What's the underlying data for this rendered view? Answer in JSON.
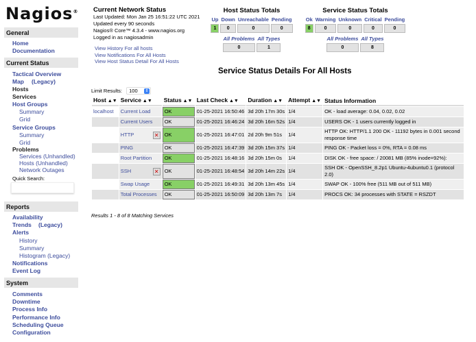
{
  "logo": "Nagios",
  "sidebar": {
    "general": "General",
    "home": "Home",
    "documentation": "Documentation",
    "current_status": "Current Status",
    "tactical": "Tactical Overview",
    "map": "Map",
    "map_legacy": "(Legacy)",
    "hosts": "Hosts",
    "services": "Services",
    "host_groups": "Host Groups",
    "hg_summary": "Summary",
    "hg_grid": "Grid",
    "service_groups": "Service Groups",
    "sg_summary": "Summary",
    "sg_grid": "Grid",
    "problems": "Problems",
    "p_services": "Services (Unhandled)",
    "p_hosts": "Hosts (Unhandled)",
    "p_outages": "Network Outages",
    "quick_search": "Quick Search:",
    "reports": "Reports",
    "availability": "Availability",
    "trends": "Trends",
    "trends_legacy": "(Legacy)",
    "alerts": "Alerts",
    "history": "History",
    "summary": "Summary",
    "histogram": "Histogram (Legacy)",
    "notifications": "Notifications",
    "event_log": "Event Log",
    "system": "System",
    "comments": "Comments",
    "downtime": "Downtime",
    "process_info": "Process Info",
    "performance_info": "Performance Info",
    "scheduling_queue": "Scheduling Queue",
    "configuration": "Configuration"
  },
  "info": {
    "title": "Current Network Status",
    "updated": "Last Updated: Mon Jan 25 16:51:22 UTC 2021",
    "every": "Updated every 90 seconds",
    "core": "Nagios® Core™ 4.3.4 - www.nagios.org",
    "logged": "Logged in as nagiosadmin"
  },
  "links": [
    "View History For all hosts",
    "View Notifications For All Hosts",
    "View Host Status Detail For All Hosts"
  ],
  "host_totals": {
    "title": "Host Status Totals",
    "labels": [
      "Up",
      "Down",
      "Unreachable",
      "Pending"
    ],
    "values": [
      "1",
      "0",
      "0",
      "0"
    ],
    "all_problems": "All Problems",
    "all_types": "All Types",
    "problems_value": "0",
    "types_value": "1"
  },
  "service_totals": {
    "title": "Service Status Totals",
    "labels": [
      "Ok",
      "Warning",
      "Unknown",
      "Critical",
      "Pending"
    ],
    "values": [
      "8",
      "0",
      "0",
      "0",
      "0"
    ],
    "all_problems": "All Problems",
    "all_types": "All Types",
    "problems_value": "0",
    "types_value": "8"
  },
  "page_title": "Service Status Details For All Hosts",
  "limit": {
    "label": "Limit Results:",
    "value": "100"
  },
  "table": {
    "headers": [
      "Host",
      "Service",
      "Status",
      "Last Check",
      "Duration",
      "Attempt",
      "Status Information"
    ],
    "rows": [
      {
        "host": "localhost",
        "service": "Current Load",
        "status": "OK",
        "last": "01-25-2021 16:50:46",
        "dur": "3d 20h 17m 30s",
        "att": "1/4",
        "info": "OK - load average: 0.04, 0.02, 0.02"
      },
      {
        "host": "",
        "service": "Current Users",
        "status": "OK",
        "last": "01-25-2021 16:46:24",
        "dur": "3d 20h 16m 52s",
        "att": "1/4",
        "info": "USERS OK - 1 users currently logged in"
      },
      {
        "host": "",
        "service": "HTTP",
        "status": "OK",
        "last": "01-25-2021 16:47:01",
        "dur": "2d 20h 9m 51s",
        "att": "1/4",
        "info": "HTTP OK: HTTP/1.1 200 OK - 11192 bytes in 0.001 second response time",
        "icon": "notifications-disabled-icon"
      },
      {
        "host": "",
        "service": "PING",
        "status": "OK",
        "last": "01-25-2021 16:47:39",
        "dur": "3d 20h 15m 37s",
        "att": "1/4",
        "info": "PING OK - Packet loss = 0%, RTA = 0.08 ms"
      },
      {
        "host": "",
        "service": "Root Partition",
        "status": "OK",
        "last": "01-25-2021 16:48:16",
        "dur": "3d 20h 15m 0s",
        "att": "1/4",
        "info": "DISK OK - free space: / 20081 MB (85% inode=92%):"
      },
      {
        "host": "",
        "service": "SSH",
        "status": "OK",
        "last": "01-25-2021 16:48:54",
        "dur": "3d 20h 14m 22s",
        "att": "1/4",
        "info": "SSH OK - OpenSSH_8.2p1 Ubuntu-4ubuntu0.1 (protocol 2.0)",
        "icon": "notifications-disabled-icon"
      },
      {
        "host": "",
        "service": "Swap Usage",
        "status": "OK",
        "last": "01-25-2021 16:49:31",
        "dur": "3d 20h 13m 45s",
        "att": "1/4",
        "info": "SWAP OK - 100% free (511 MB out of 511 MB)"
      },
      {
        "host": "",
        "service": "Total Processes",
        "status": "OK",
        "last": "01-25-2021 16:50:09",
        "dur": "3d 20h 13m 7s",
        "att": "1/4",
        "info": "PROCS OK: 34 processes with STATE = RSZDT"
      }
    ]
  },
  "results": "Results 1 - 8 of 8 Matching Services",
  "colors": {
    "ok": "#88d066",
    "link": "#3c4c9c",
    "header_bg": "#e6e6e6"
  }
}
